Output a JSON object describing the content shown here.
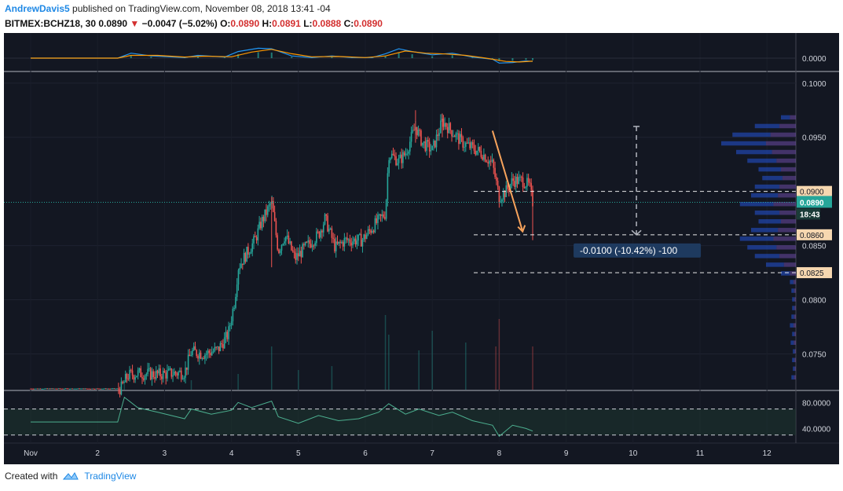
{
  "header": {
    "author": "AndrewDavis5",
    "published_text": "published on TradingView.com, November 08, 2018 13:41 -04",
    "symbol": "BITMEX:BCHZ18, 30",
    "last": "0.0890",
    "change_arrow": "▼",
    "change": "−0.0047 (−5.02%)",
    "o_label": "O:",
    "o": "0.0890",
    "h_label": "H:",
    "h": "0.0891",
    "l_label": "L:",
    "l": "0.0888",
    "c_label": "C:",
    "c": "0.0890"
  },
  "footer": {
    "created_with": "Created with",
    "brand": "TradingView"
  },
  "colors": {
    "background": "#131722",
    "up": "#26a69a",
    "down": "#ef5350",
    "macd": "#2196f3",
    "signal": "#ff9800",
    "rsi": "#4caf8f",
    "level_line": "#ffffff",
    "label_bg": "#f6d7b0",
    "current_price_bg": "#26a69a",
    "arrow": "#f7a35c"
  },
  "chart_data": {
    "type": "candlestick",
    "symbol": "BITMEX:BCHZ18",
    "interval": "30",
    "x_ticks": [
      "Nov",
      "2",
      "3",
      "4",
      "5",
      "6",
      "7",
      "8",
      "9",
      "10",
      "11",
      "12"
    ],
    "price_axis": {
      "ticks": [
        "0.1000",
        "0.0950",
        "0.0850",
        "0.0800",
        "0.0750"
      ],
      "range": [
        0.0717,
        0.101
      ]
    },
    "macd_axis": {
      "ticks": [
        "0.0000"
      ]
    },
    "rsi_axis": {
      "ticks": [
        "80.0000",
        "40.0000"
      ],
      "levels": [
        70,
        30
      ]
    },
    "current_price": "0.0890",
    "countdown": "18:43",
    "levels": [
      {
        "price": 0.09,
        "label": "0.0900"
      },
      {
        "price": 0.086,
        "label": "0.0860"
      },
      {
        "price": 0.0825,
        "label": "0.0825"
      }
    ],
    "measure_label": "-0.0100 (-10.42%) -100",
    "price_path": [
      [
        1.0,
        0.0718
      ],
      [
        2.0,
        0.0718
      ],
      [
        2.35,
        0.0718
      ],
      [
        2.45,
        0.073
      ],
      [
        2.6,
        0.0732
      ],
      [
        2.9,
        0.0731
      ],
      [
        3.3,
        0.0733
      ],
      [
        3.4,
        0.0752
      ],
      [
        3.6,
        0.075
      ],
      [
        3.8,
        0.0754
      ],
      [
        3.95,
        0.0768
      ],
      [
        4.05,
        0.08
      ],
      [
        4.1,
        0.083
      ],
      [
        4.2,
        0.084
      ],
      [
        4.35,
        0.0855
      ],
      [
        4.45,
        0.0872
      ],
      [
        4.6,
        0.089
      ],
      [
        4.7,
        0.0845
      ],
      [
        4.8,
        0.086
      ],
      [
        4.95,
        0.0838
      ],
      [
        5.1,
        0.0848
      ],
      [
        5.3,
        0.086
      ],
      [
        5.4,
        0.0875
      ],
      [
        5.55,
        0.0848
      ],
      [
        5.7,
        0.0855
      ],
      [
        5.95,
        0.0855
      ],
      [
        6.15,
        0.087
      ],
      [
        6.3,
        0.088
      ],
      [
        6.35,
        0.0935
      ],
      [
        6.5,
        0.0928
      ],
      [
        6.6,
        0.0935
      ],
      [
        6.75,
        0.096
      ],
      [
        6.85,
        0.0945
      ],
      [
        7.0,
        0.0938
      ],
      [
        7.15,
        0.0965
      ],
      [
        7.3,
        0.0955
      ],
      [
        7.45,
        0.0945
      ],
      [
        7.6,
        0.094
      ],
      [
        7.75,
        0.0935
      ],
      [
        7.9,
        0.0925
      ],
      [
        8.0,
        0.0895
      ],
      [
        8.1,
        0.09
      ],
      [
        8.2,
        0.091
      ],
      [
        8.35,
        0.091
      ],
      [
        8.45,
        0.0905
      ],
      [
        8.5,
        0.089
      ]
    ],
    "wicks": [
      {
        "x": 8.5,
        "high": 0.0905,
        "low": 0.0855
      },
      {
        "x": 8.0,
        "high": 0.0905,
        "low": 0.0885
      },
      {
        "x": 7.15,
        "high": 0.0972,
        "low": 0.095
      },
      {
        "x": 6.75,
        "high": 0.0975,
        "low": 0.0945
      },
      {
        "x": 4.6,
        "high": 0.0895,
        "low": 0.083
      }
    ],
    "volume_profile": [
      {
        "price": 0.0968,
        "value": 0.2
      },
      {
        "price": 0.096,
        "value": 0.55
      },
      {
        "price": 0.0952,
        "value": 0.85
      },
      {
        "price": 0.0944,
        "value": 1.0
      },
      {
        "price": 0.0936,
        "value": 0.8
      },
      {
        "price": 0.0928,
        "value": 0.65
      },
      {
        "price": 0.092,
        "value": 0.5
      },
      {
        "price": 0.0912,
        "value": 0.45
      },
      {
        "price": 0.0904,
        "value": 0.55
      },
      {
        "price": 0.0896,
        "value": 0.6
      },
      {
        "price": 0.0888,
        "value": 0.75
      },
      {
        "price": 0.088,
        "value": 0.55
      },
      {
        "price": 0.0872,
        "value": 0.5
      },
      {
        "price": 0.0864,
        "value": 0.6
      },
      {
        "price": 0.0856,
        "value": 0.75
      },
      {
        "price": 0.0848,
        "value": 0.65
      },
      {
        "price": 0.084,
        "value": 0.55
      },
      {
        "price": 0.0832,
        "value": 0.4
      },
      {
        "price": 0.0824,
        "value": 0.2
      },
      {
        "price": 0.0816,
        "value": 0.08
      },
      {
        "price": 0.0808,
        "value": 0.06
      },
      {
        "price": 0.08,
        "value": 0.05
      },
      {
        "price": 0.0792,
        "value": 0.05
      },
      {
        "price": 0.0784,
        "value": 0.06
      },
      {
        "price": 0.0776,
        "value": 0.08
      },
      {
        "price": 0.0768,
        "value": 0.05
      },
      {
        "price": 0.076,
        "value": 0.07
      },
      {
        "price": 0.0752,
        "value": 0.04
      },
      {
        "price": 0.0744,
        "value": 0.05
      },
      {
        "price": 0.0736,
        "value": 0.04
      },
      {
        "price": 0.0728,
        "value": 0.06
      }
    ],
    "volume_bars": [
      [
        2.4,
        0.1
      ],
      [
        3.4,
        0.12
      ],
      [
        4.1,
        0.2
      ],
      [
        4.6,
        0.55
      ],
      [
        5.0,
        0.25
      ],
      [
        5.5,
        0.3
      ],
      [
        6.3,
        0.95
      ],
      [
        6.35,
        0.7
      ],
      [
        6.8,
        0.5
      ],
      [
        7.0,
        0.75
      ],
      [
        7.5,
        0.6
      ],
      [
        7.95,
        0.55
      ],
      [
        8.0,
        0.9
      ],
      [
        8.5,
        0.55
      ]
    ],
    "macd": [
      [
        1.0,
        0.0
      ],
      [
        1.5,
        0.0
      ],
      [
        2.3,
        0.0
      ],
      [
        2.5,
        0.45
      ],
      [
        2.8,
        0.2
      ],
      [
        3.3,
        0.05
      ],
      [
        3.5,
        0.25
      ],
      [
        3.9,
        0.1
      ],
      [
        4.1,
        0.6
      ],
      [
        4.4,
        0.9
      ],
      [
        4.6,
        0.85
      ],
      [
        4.9,
        0.2
      ],
      [
        5.2,
        0.05
      ],
      [
        5.5,
        0.2
      ],
      [
        5.8,
        0.05
      ],
      [
        6.1,
        0.05
      ],
      [
        6.3,
        0.4
      ],
      [
        6.5,
        0.85
      ],
      [
        6.7,
        0.6
      ],
      [
        7.0,
        0.3
      ],
      [
        7.3,
        0.45
      ],
      [
        7.6,
        0.1
      ],
      [
        7.9,
        -0.1
      ],
      [
        8.0,
        -0.45
      ],
      [
        8.2,
        -0.4
      ],
      [
        8.4,
        -0.25
      ],
      [
        8.5,
        -0.3
      ]
    ],
    "signal": [
      [
        1.0,
        0.0
      ],
      [
        2.3,
        0.0
      ],
      [
        2.5,
        0.25
      ],
      [
        2.9,
        0.25
      ],
      [
        3.3,
        0.1
      ],
      [
        3.6,
        0.18
      ],
      [
        4.0,
        0.12
      ],
      [
        4.3,
        0.55
      ],
      [
        4.6,
        0.8
      ],
      [
        4.9,
        0.4
      ],
      [
        5.2,
        0.12
      ],
      [
        5.6,
        0.15
      ],
      [
        6.0,
        0.05
      ],
      [
        6.3,
        0.2
      ],
      [
        6.6,
        0.65
      ],
      [
        6.9,
        0.45
      ],
      [
        7.2,
        0.38
      ],
      [
        7.5,
        0.25
      ],
      [
        7.8,
        0.0
      ],
      [
        8.1,
        -0.3
      ],
      [
        8.3,
        -0.35
      ],
      [
        8.5,
        -0.28
      ]
    ],
    "rsi": [
      [
        1.0,
        50
      ],
      [
        2.3,
        50
      ],
      [
        2.4,
        88
      ],
      [
        2.6,
        72
      ],
      [
        2.9,
        65
      ],
      [
        3.3,
        55
      ],
      [
        3.4,
        70
      ],
      [
        3.7,
        62
      ],
      [
        4.0,
        68
      ],
      [
        4.1,
        80
      ],
      [
        4.3,
        72
      ],
      [
        4.6,
        82
      ],
      [
        4.7,
        58
      ],
      [
        5.0,
        48
      ],
      [
        5.3,
        60
      ],
      [
        5.6,
        52
      ],
      [
        5.9,
        55
      ],
      [
        6.2,
        65
      ],
      [
        6.35,
        78
      ],
      [
        6.6,
        62
      ],
      [
        6.8,
        70
      ],
      [
        7.1,
        60
      ],
      [
        7.3,
        65
      ],
      [
        7.6,
        52
      ],
      [
        7.9,
        45
      ],
      [
        8.0,
        28
      ],
      [
        8.2,
        45
      ],
      [
        8.4,
        40
      ],
      [
        8.5,
        36
      ]
    ]
  }
}
